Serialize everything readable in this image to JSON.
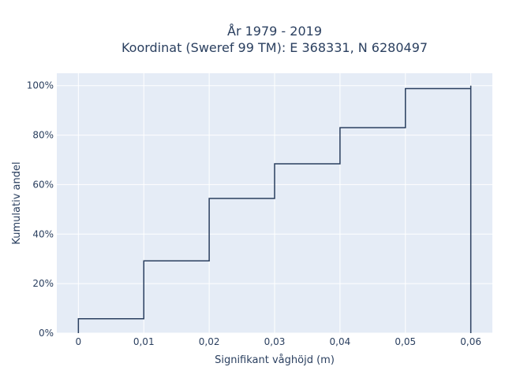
{
  "chart_data": {
    "type": "line",
    "subtype": "step-ecdf",
    "title_line1": "År 1979 - 2019",
    "title_line2": "Koordinat (Sweref 99 TM): E 368331, N 6280497",
    "xlabel": "Signifikant våghöjd (m)",
    "ylabel": "Kumulativ andel",
    "xlim": [
      -0.0033,
      0.0633
    ],
    "ylim": [
      0,
      1.05
    ],
    "x_ticks": [
      0,
      0.01,
      0.02,
      0.03,
      0.04,
      0.05,
      0.06
    ],
    "x_tick_labels": [
      "0",
      "0,01",
      "0,02",
      "0,03",
      "0,04",
      "0,05",
      "0,06"
    ],
    "y_ticks": [
      0,
      0.2,
      0.4,
      0.6,
      0.8,
      1.0
    ],
    "y_tick_labels": [
      "0%",
      "20%",
      "40%",
      "60%",
      "80%",
      "100%"
    ],
    "grid": true,
    "line_color": "#2a3f5f",
    "background": "#e5ecf6",
    "points": [
      {
        "x": 0,
        "y": 0.058
      },
      {
        "x": 0.01,
        "y": 0.292
      },
      {
        "x": 0.02,
        "y": 0.544
      },
      {
        "x": 0.03,
        "y": 0.684
      },
      {
        "x": 0.04,
        "y": 0.83
      },
      {
        "x": 0.05,
        "y": 0.988
      },
      {
        "x": 0.06,
        "y": 1.0
      }
    ]
  }
}
